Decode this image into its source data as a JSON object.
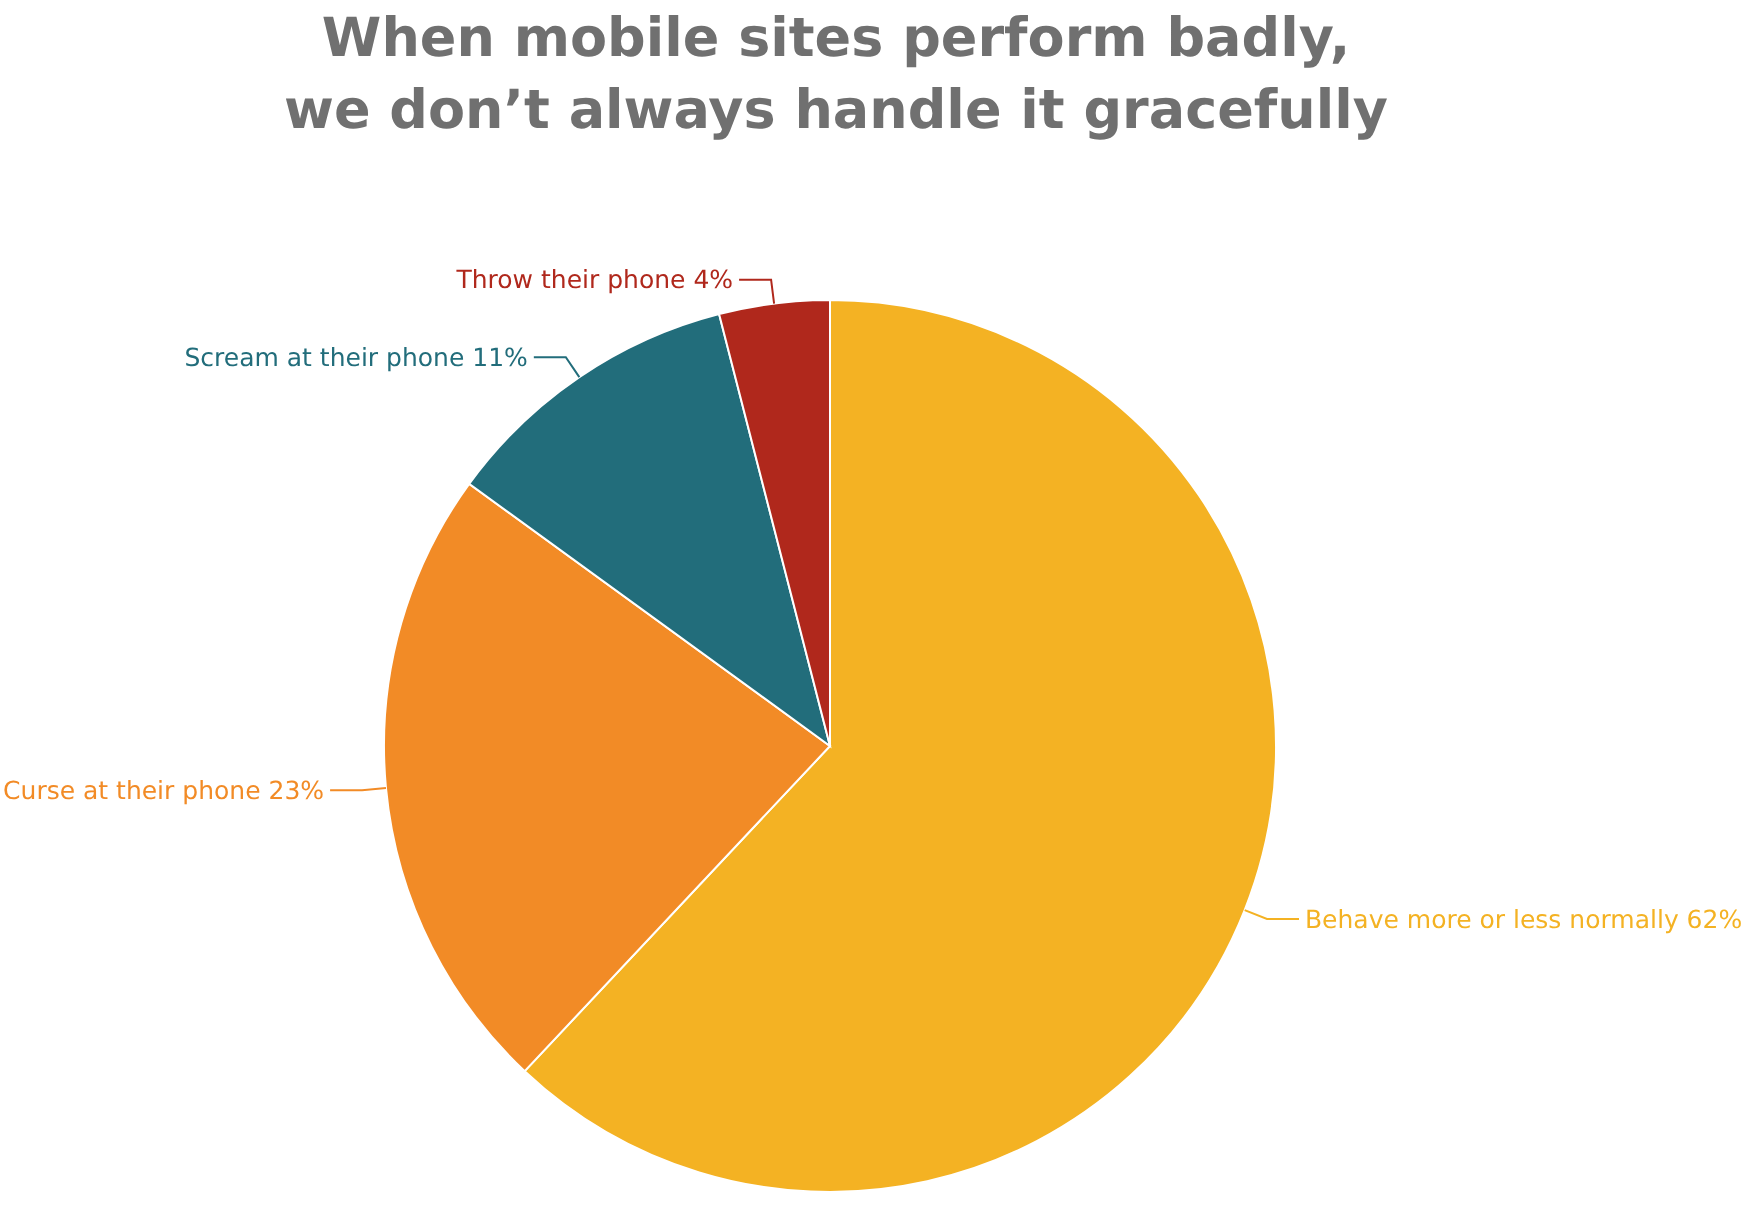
{
  "chart_data": {
    "type": "pie",
    "title": "When mobile sites perform badly,\nwe don’t always handle it gracefully",
    "categories": [
      "Behave more or less normally",
      "Curse at their phone",
      "Scream at their phone",
      "Throw their phone"
    ],
    "values": [
      62,
      23,
      11,
      4
    ],
    "value_labels": [
      "62%",
      "23%",
      "11%",
      "4%"
    ],
    "colors": [
      "#f4b223",
      "#f28b26",
      "#226d7b",
      "#b0281c"
    ]
  }
}
